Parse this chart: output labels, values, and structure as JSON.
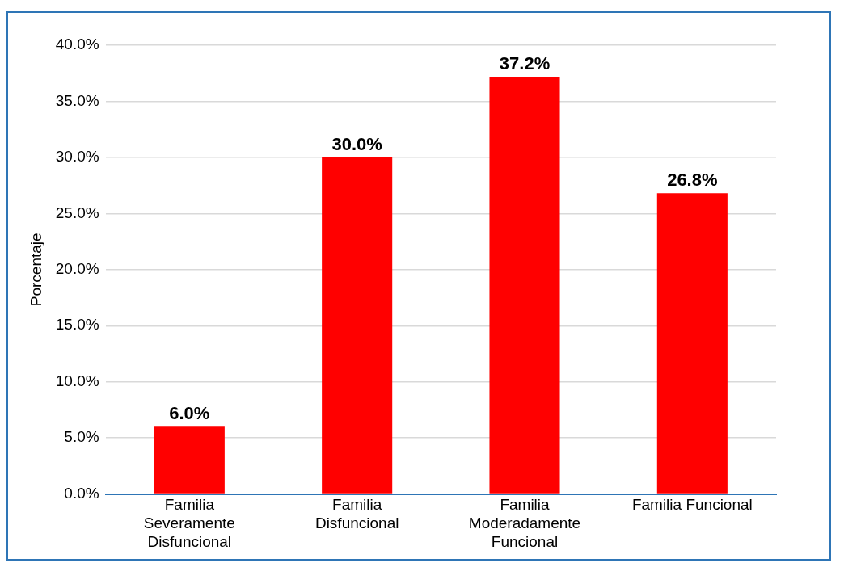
{
  "chart_data": {
    "type": "bar",
    "ylabel": "Porcentaje",
    "categories": [
      "Familia Severamente Disfuncional",
      "Familia Disfuncional",
      "Familia Moderadamente Funcional",
      "Familia Funcional"
    ],
    "values": [
      6.0,
      30.0,
      37.2,
      26.8
    ],
    "value_labels": [
      "6.0%",
      "30.0%",
      "37.2%",
      "26.8%"
    ],
    "color": "#ff0000",
    "ylim": [
      0,
      40
    ],
    "yticks": [
      {
        "value": 0,
        "label": "0.0%"
      },
      {
        "value": 5,
        "label": "5.0%"
      },
      {
        "value": 10,
        "label": "10.0%"
      },
      {
        "value": 15,
        "label": "15.0%"
      },
      {
        "value": 20,
        "label": "20.0%"
      },
      {
        "value": 25,
        "label": "25.0%"
      },
      {
        "value": 30,
        "label": "30.0%"
      },
      {
        "value": 35,
        "label": "35.0%"
      },
      {
        "value": 40,
        "label": "40.0%"
      }
    ],
    "grid": "y",
    "legend": false
  }
}
